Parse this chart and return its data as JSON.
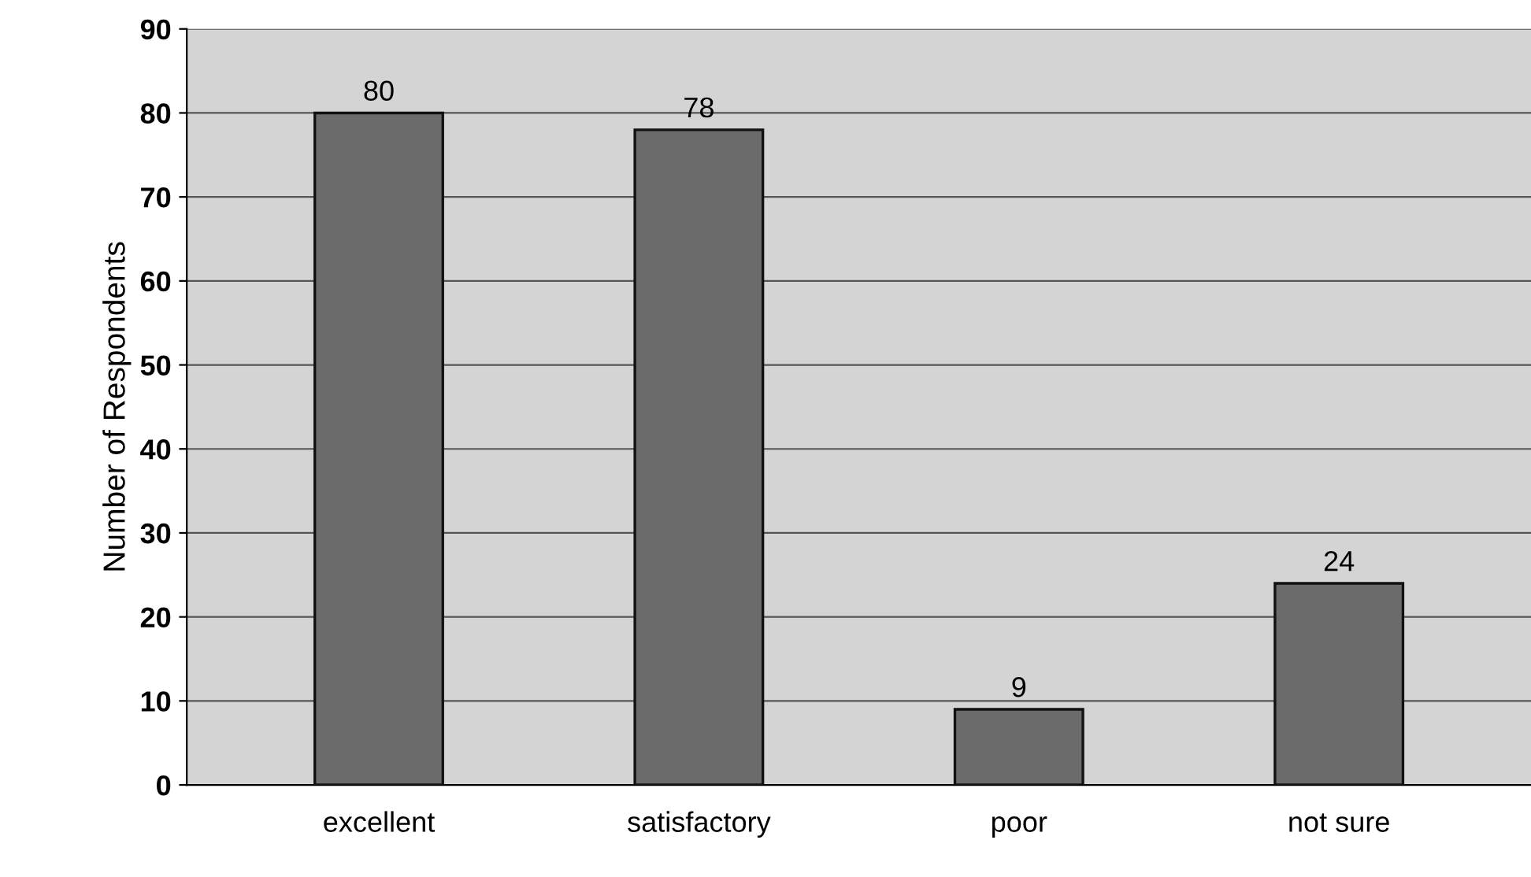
{
  "chart_data": {
    "type": "bar",
    "ylabel": "Number of Respondents",
    "categories": [
      "excellent",
      "satisfactory",
      "poor",
      "not sure"
    ],
    "values": [
      80,
      78,
      9,
      24
    ],
    "color": "#6b6b6b",
    "data_labels": true,
    "ylim": [
      0,
      90
    ],
    "yticks": [
      0,
      10,
      20,
      30,
      40,
      50,
      60,
      70,
      80,
      90
    ],
    "grid": "y"
  }
}
